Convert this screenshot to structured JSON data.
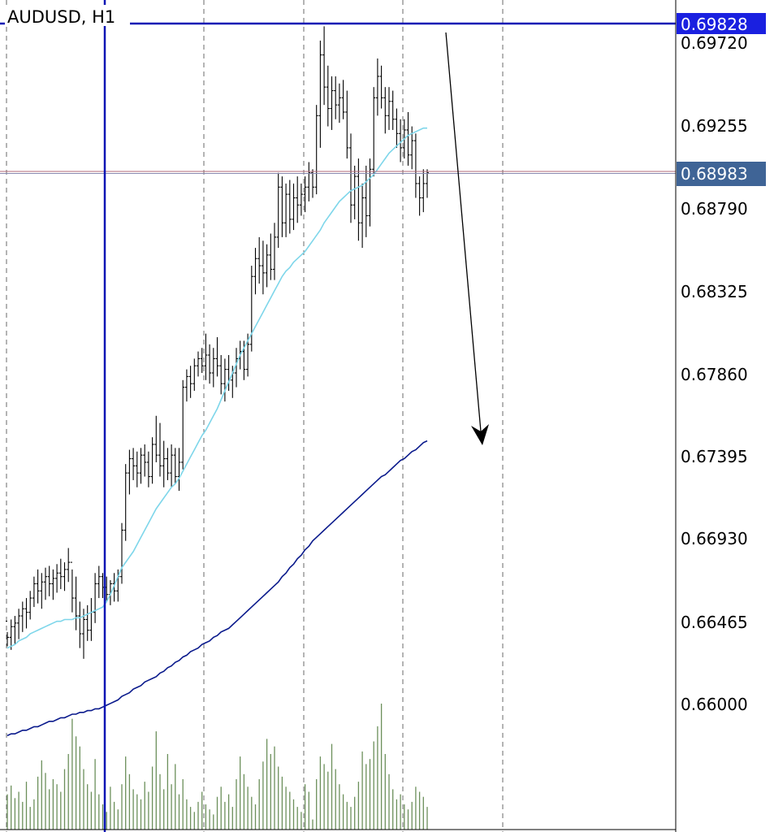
{
  "chart_data": {
    "type": "ohlc",
    "title": "AUDUSD, H1",
    "y_axis": {
      "ticks": [
        "0.69720",
        "0.69255",
        "0.68790",
        "0.68325",
        "0.67860",
        "0.67395",
        "0.66930",
        "0.66465",
        "0.66000"
      ],
      "range": [
        0.6555,
        0.6996
      ]
    },
    "price_tags": {
      "upper_line": "0.69828",
      "current_price": "0.68983"
    },
    "colors": {
      "bars": "#000000",
      "ma_fast": "#7ed6ea",
      "ma_slow": "#0a1a8c",
      "volume": "#6b8f5a",
      "selected_line": "#0a14b4",
      "price_tag_upper": "#1a20e0",
      "price_tag_current": "#3f6496",
      "current_price_line": "#b06a7a",
      "grid": "#6a6a6a"
    },
    "grid": "vertical-dashed",
    "bars": [
      [
        0.6647,
        0.6641,
        0.6633,
        0.6638
      ],
      [
        0.6638,
        0.6648,
        0.6631,
        0.6644
      ],
      [
        0.6644,
        0.665,
        0.6634,
        0.6646
      ],
      [
        0.6646,
        0.6654,
        0.6637,
        0.665
      ],
      [
        0.665,
        0.6658,
        0.6641,
        0.6654
      ],
      [
        0.6654,
        0.666,
        0.6643,
        0.6652
      ],
      [
        0.6652,
        0.6664,
        0.6648,
        0.666
      ],
      [
        0.666,
        0.6672,
        0.6655,
        0.6668
      ],
      [
        0.6668,
        0.6676,
        0.6657,
        0.6664
      ],
      [
        0.6664,
        0.6674,
        0.6654,
        0.6669
      ],
      [
        0.6669,
        0.6677,
        0.6659,
        0.6672
      ],
      [
        0.6672,
        0.6678,
        0.6661,
        0.6668
      ],
      [
        0.6668,
        0.6676,
        0.6659,
        0.6671
      ],
      [
        0.6671,
        0.6679,
        0.6663,
        0.6674
      ],
      [
        0.6674,
        0.6682,
        0.6665,
        0.6672
      ],
      [
        0.6672,
        0.668,
        0.6664,
        0.6676
      ],
      [
        0.6676,
        0.6688,
        0.6669,
        0.668
      ],
      [
        0.668,
        0.6676,
        0.6652,
        0.666
      ],
      [
        0.666,
        0.6672,
        0.6642,
        0.665
      ],
      [
        0.665,
        0.6658,
        0.6632,
        0.664
      ],
      [
        0.664,
        0.6654,
        0.6626,
        0.6648
      ],
      [
        0.6648,
        0.6656,
        0.6636,
        0.6642
      ],
      [
        0.6642,
        0.666,
        0.6636,
        0.6652
      ],
      [
        0.6652,
        0.6674,
        0.6646,
        0.6668
      ],
      [
        0.6668,
        0.6678,
        0.666,
        0.6672
      ],
      [
        0.6672,
        0.6674,
        0.666,
        0.6666
      ],
      [
        0.6666,
        0.6672,
        0.6658,
        0.6662
      ],
      [
        0.6662,
        0.667,
        0.6656,
        0.6668
      ],
      [
        0.6668,
        0.6674,
        0.6658,
        0.6664
      ],
      [
        0.6664,
        0.6676,
        0.6658,
        0.6672
      ],
      [
        0.6672,
        0.6702,
        0.6668,
        0.6698
      ],
      [
        0.6698,
        0.6735,
        0.6692,
        0.673
      ],
      [
        0.673,
        0.6743,
        0.6718,
        0.6738
      ],
      [
        0.6738,
        0.6744,
        0.6726,
        0.6734
      ],
      [
        0.6734,
        0.6742,
        0.6722,
        0.673
      ],
      [
        0.673,
        0.6744,
        0.6724,
        0.674
      ],
      [
        0.674,
        0.6746,
        0.6728,
        0.6736
      ],
      [
        0.6736,
        0.6742,
        0.6722,
        0.6728
      ],
      [
        0.6728,
        0.675,
        0.6724,
        0.6746
      ],
      [
        0.6746,
        0.6762,
        0.6736,
        0.674
      ],
      [
        0.674,
        0.6758,
        0.6728,
        0.6734
      ],
      [
        0.6734,
        0.6748,
        0.6722,
        0.6738
      ],
      [
        0.6738,
        0.6744,
        0.6726,
        0.673
      ],
      [
        0.673,
        0.6746,
        0.6722,
        0.674
      ],
      [
        0.674,
        0.6744,
        0.6724,
        0.6728
      ],
      [
        0.6728,
        0.6744,
        0.672,
        0.6736
      ],
      [
        0.6736,
        0.6782,
        0.6732,
        0.6778
      ],
      [
        0.6778,
        0.6788,
        0.677,
        0.6784
      ],
      [
        0.6784,
        0.679,
        0.6772,
        0.678
      ],
      [
        0.678,
        0.6794,
        0.6776,
        0.679
      ],
      [
        0.679,
        0.6798,
        0.6784,
        0.6794
      ],
      [
        0.6794,
        0.68,
        0.6786,
        0.679
      ],
      [
        0.679,
        0.6808,
        0.6782,
        0.6796
      ],
      [
        0.6796,
        0.6802,
        0.678,
        0.6786
      ],
      [
        0.6786,
        0.68,
        0.6778,
        0.6794
      ],
      [
        0.6794,
        0.6806,
        0.6784,
        0.679
      ],
      [
        0.679,
        0.6796,
        0.6774,
        0.678
      ],
      [
        0.678,
        0.6794,
        0.677,
        0.6788
      ],
      [
        0.6788,
        0.6796,
        0.6776,
        0.6782
      ],
      [
        0.6782,
        0.679,
        0.6772,
        0.6786
      ],
      [
        0.6786,
        0.68,
        0.6778,
        0.6794
      ],
      [
        0.6794,
        0.6804,
        0.6788,
        0.6798
      ],
      [
        0.6798,
        0.6804,
        0.6782,
        0.6788
      ],
      [
        0.6788,
        0.6808,
        0.6784,
        0.6802
      ],
      [
        0.6802,
        0.6846,
        0.6798,
        0.684
      ],
      [
        0.684,
        0.6856,
        0.683,
        0.685
      ],
      [
        0.685,
        0.6862,
        0.6836,
        0.6846
      ],
      [
        0.6846,
        0.686,
        0.683,
        0.6842
      ],
      [
        0.6842,
        0.6858,
        0.6834,
        0.6852
      ],
      [
        0.6852,
        0.6864,
        0.6838,
        0.6844
      ],
      [
        0.6844,
        0.687,
        0.6838,
        0.6862
      ],
      [
        0.6862,
        0.6898,
        0.6856,
        0.689
      ],
      [
        0.689,
        0.6896,
        0.6862,
        0.687
      ],
      [
        0.687,
        0.6892,
        0.6862,
        0.6886
      ],
      [
        0.6886,
        0.6894,
        0.6864,
        0.6872
      ],
      [
        0.6872,
        0.6892,
        0.6866,
        0.6884
      ],
      [
        0.6884,
        0.6896,
        0.687,
        0.688
      ],
      [
        0.688,
        0.6892,
        0.6874,
        0.6886
      ],
      [
        0.6886,
        0.6896,
        0.6876,
        0.689
      ],
      [
        0.689,
        0.6904,
        0.6882,
        0.6898
      ],
      [
        0.6898,
        0.69,
        0.6884,
        0.689
      ],
      [
        0.689,
        0.6936,
        0.6886,
        0.693
      ],
      [
        0.693,
        0.6972,
        0.6912,
        0.6964
      ],
      [
        0.6964,
        0.698,
        0.6936,
        0.6946
      ],
      [
        0.6946,
        0.6958,
        0.6924,
        0.6934
      ],
      [
        0.6934,
        0.6952,
        0.6922,
        0.6944
      ],
      [
        0.6944,
        0.6952,
        0.6928,
        0.6936
      ],
      [
        0.6936,
        0.6948,
        0.6926,
        0.694
      ],
      [
        0.694,
        0.695,
        0.6928,
        0.6932
      ],
      [
        0.6932,
        0.6944,
        0.6906,
        0.6912
      ],
      [
        0.6912,
        0.692,
        0.687,
        0.688
      ],
      [
        0.688,
        0.6902,
        0.6872,
        0.6896
      ],
      [
        0.6896,
        0.6906,
        0.686,
        0.687
      ],
      [
        0.687,
        0.6892,
        0.6856,
        0.6884
      ],
      [
        0.6884,
        0.6902,
        0.6862,
        0.6874
      ],
      [
        0.6874,
        0.6906,
        0.6868,
        0.69
      ],
      [
        0.69,
        0.6946,
        0.6896,
        0.694
      ],
      [
        0.694,
        0.6962,
        0.693,
        0.6952
      ],
      [
        0.6952,
        0.6958,
        0.6934,
        0.694
      ],
      [
        0.694,
        0.6946,
        0.692,
        0.693
      ],
      [
        0.693,
        0.6946,
        0.6922,
        0.6938
      ],
      [
        0.6938,
        0.6944,
        0.6922,
        0.6928
      ],
      [
        0.6928,
        0.6934,
        0.6912,
        0.692
      ],
      [
        0.692,
        0.6928,
        0.6904,
        0.6912
      ],
      [
        0.6912,
        0.6928,
        0.6906,
        0.6922
      ],
      [
        0.6922,
        0.6932,
        0.6902,
        0.6908
      ],
      [
        0.6908,
        0.6924,
        0.69,
        0.6916
      ],
      [
        0.6916,
        0.692,
        0.6884,
        0.6892
      ],
      [
        0.6892,
        0.6896,
        0.6874,
        0.6884
      ],
      [
        0.6884,
        0.69,
        0.6876,
        0.6892
      ],
      [
        0.6892,
        0.69,
        0.6884,
        0.6898
      ]
    ],
    "ma_fast": [
      0.6632,
      0.6633,
      0.6634,
      0.6636,
      0.6637,
      0.6638,
      0.664,
      0.6641,
      0.6642,
      0.6643,
      0.6644,
      0.6645,
      0.6646,
      0.6647,
      0.6647,
      0.6648,
      0.6648,
      0.6648,
      0.6649,
      0.6649,
      0.665,
      0.6651,
      0.6652,
      0.6653,
      0.6654,
      0.6655,
      0.6658,
      0.6662,
      0.6667,
      0.6672,
      0.6677,
      0.668,
      0.6683,
      0.6686,
      0.669,
      0.6694,
      0.6698,
      0.6702,
      0.6706,
      0.671,
      0.6713,
      0.6716,
      0.6719,
      0.6722,
      0.6724,
      0.6727,
      0.6731,
      0.6735,
      0.6739,
      0.6743,
      0.6747,
      0.6751,
      0.6754,
      0.6758,
      0.6762,
      0.6766,
      0.6771,
      0.6776,
      0.6781,
      0.6786,
      0.6791,
      0.6796,
      0.68,
      0.6804,
      0.6808,
      0.6812,
      0.6816,
      0.682,
      0.6824,
      0.6828,
      0.6832,
      0.6836,
      0.684,
      0.6843,
      0.6845,
      0.6848,
      0.685,
      0.6852,
      0.6854,
      0.6857,
      0.686,
      0.6863,
      0.6866,
      0.687,
      0.6873,
      0.6876,
      0.6879,
      0.6882,
      0.6884,
      0.6886,
      0.6888,
      0.6889,
      0.689,
      0.6891,
      0.6893,
      0.6895,
      0.6897,
      0.69,
      0.6903,
      0.6906,
      0.6909,
      0.6911,
      0.6913,
      0.6915,
      0.6917,
      0.6919,
      0.692,
      0.6921,
      0.6922,
      0.6923,
      0.6923
    ],
    "ma_slow": [
      0.6583,
      0.6584,
      0.6584,
      0.6585,
      0.6586,
      0.6586,
      0.6587,
      0.6588,
      0.6588,
      0.6589,
      0.659,
      0.6591,
      0.6591,
      0.6592,
      0.6593,
      0.6593,
      0.6594,
      0.6595,
      0.6595,
      0.6596,
      0.6596,
      0.6597,
      0.6597,
      0.6598,
      0.6598,
      0.6599,
      0.66,
      0.6601,
      0.6602,
      0.6603,
      0.6605,
      0.6606,
      0.6607,
      0.6609,
      0.661,
      0.6611,
      0.6613,
      0.6614,
      0.6615,
      0.6616,
      0.6618,
      0.6619,
      0.6621,
      0.6622,
      0.6624,
      0.6625,
      0.6627,
      0.6628,
      0.663,
      0.6631,
      0.6632,
      0.6634,
      0.6635,
      0.6636,
      0.6638,
      0.6639,
      0.6641,
      0.6642,
      0.6643,
      0.6645,
      0.6647,
      0.6649,
      0.6651,
      0.6653,
      0.6655,
      0.6657,
      0.6659,
      0.6661,
      0.6663,
      0.6665,
      0.6667,
      0.6669,
      0.6672,
      0.6674,
      0.6677,
      0.6679,
      0.6682,
      0.6684,
      0.6687,
      0.6689,
      0.6692,
      0.6694,
      0.6696,
      0.6698,
      0.67,
      0.6702,
      0.6704,
      0.6706,
      0.6708,
      0.671,
      0.6712,
      0.6714,
      0.6716,
      0.6718,
      0.672,
      0.6722,
      0.6724,
      0.6726,
      0.6728,
      0.6729,
      0.6731,
      0.6733,
      0.6735,
      0.6737,
      0.6738,
      0.674,
      0.6742,
      0.6743,
      0.6745,
      0.6747,
      0.6748
    ],
    "volume": [
      0.28,
      0.35,
      0.25,
      0.3,
      0.22,
      0.38,
      0.18,
      0.24,
      0.42,
      0.55,
      0.45,
      0.32,
      0.4,
      0.36,
      0.3,
      0.48,
      0.6,
      0.88,
      0.74,
      0.66,
      0.48,
      0.36,
      0.3,
      0.56,
      0.28,
      0.2,
      0.14,
      0.34,
      0.22,
      0.16,
      0.36,
      0.58,
      0.44,
      0.32,
      0.28,
      0.24,
      0.38,
      0.3,
      0.5,
      0.78,
      0.44,
      0.32,
      0.6,
      0.36,
      0.52,
      0.28,
      0.4,
      0.24,
      0.18,
      0.14,
      0.22,
      0.3,
      0.2,
      0.16,
      0.12,
      0.26,
      0.34,
      0.22,
      0.28,
      0.18,
      0.4,
      0.58,
      0.44,
      0.34,
      0.26,
      0.2,
      0.4,
      0.54,
      0.72,
      0.6,
      0.66,
      0.5,
      0.42,
      0.34,
      0.3,
      0.24,
      0.18,
      0.14,
      0.36,
      0.3,
      0.08,
      0.4,
      0.58,
      0.52,
      0.46,
      0.68,
      0.48,
      0.36,
      0.28,
      0.22,
      0.18,
      0.26,
      0.38,
      0.62,
      0.52,
      0.56,
      0.7,
      0.82,
      1.0,
      0.6,
      0.44,
      0.32,
      0.24,
      0.28,
      0.2,
      0.16,
      0.22,
      0.34,
      0.3,
      0.26,
      0.18
    ]
  }
}
